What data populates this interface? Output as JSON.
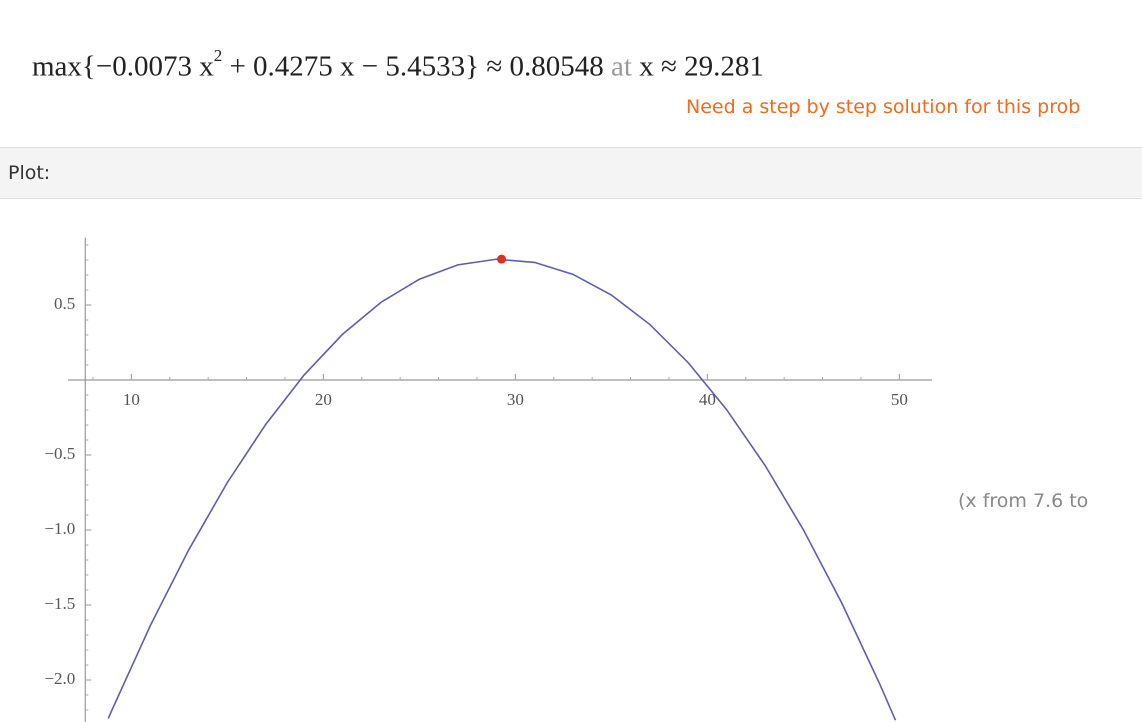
{
  "result": {
    "expression_start": "max{−0.0073 x",
    "exponent": "2",
    "expression_end": "+ 0.4275 x − 5.4533}",
    "approx": "≈",
    "max_value": "0.80548",
    "at": "at",
    "location": "x ≈ 29.281",
    "step_link": "Need a step by step solution for this prob"
  },
  "plot_header": "Plot:",
  "range_note": "(x from 7.6 to",
  "chart_data": {
    "type": "line",
    "x": [
      8.8,
      9,
      11,
      13,
      15,
      17,
      19,
      21,
      23,
      25,
      27,
      29,
      31,
      33,
      35,
      37,
      39,
      41,
      43,
      45,
      47,
      49,
      49.8
    ],
    "series": [
      {
        "color": "#5e5eae",
        "values": [
          -2.2566,
          -2.1971,
          -1.6341,
          -1.1295,
          -0.6833,
          -0.2955,
          0.0339,
          0.3049,
          0.5175,
          0.6717,
          0.7675,
          0.8049,
          0.7839,
          0.7045,
          0.5667,
          0.3705,
          0.1159,
          -0.1971,
          -0.5685,
          -0.9983,
          -1.4865,
          -2.0331,
          -2.2687
        ]
      }
    ],
    "points": [
      {
        "x": 29.281,
        "y": 0.80548,
        "color": "#e0301e"
      }
    ],
    "xlim": [
      6.7,
      51.7
    ],
    "ylim": [
      -2.28,
      0.95
    ],
    "xticks": [
      10,
      20,
      30,
      40,
      50
    ],
    "yticks": [
      0.5,
      {
        "value": -0.5,
        "label": "−0.5"
      },
      {
        "value": -1.0,
        "label": "−1.0"
      },
      {
        "value": -1.5,
        "label": "−1.5"
      },
      {
        "value": -2.0,
        "label": "−2.0"
      }
    ],
    "minor_xticks": [
      8,
      12,
      14,
      16,
      18,
      22,
      24,
      26,
      28,
      32,
      34,
      36,
      38,
      42,
      44,
      46,
      48
    ],
    "minor_yticks": [
      -2.2,
      -2.1,
      -1.9,
      -1.8,
      -1.7,
      -1.6,
      -1.4,
      -1.3,
      -1.2,
      -1.1,
      -0.9,
      -0.8,
      -0.7,
      -0.6,
      -0.4,
      -0.3,
      -0.2,
      -0.1,
      0.1,
      0.2,
      0.3,
      0.4,
      0.6,
      0.7,
      0.8,
      0.9
    ],
    "y_axis_at_x": 7.6,
    "x_axis_at_y": 0
  }
}
